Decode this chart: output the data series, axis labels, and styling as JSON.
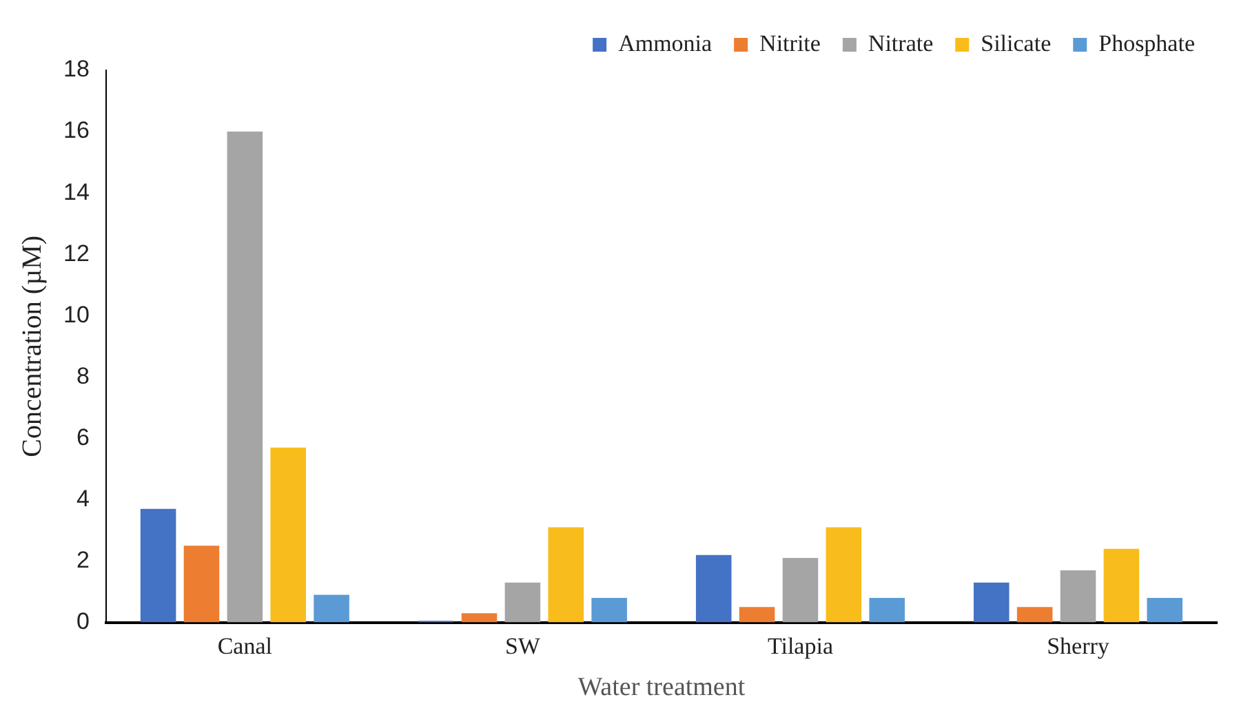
{
  "chart_data": {
    "type": "bar",
    "xlabel": "Water treatment",
    "ylabel": "Concentration (µM)",
    "categories": [
      "Canal",
      "SW",
      "Tilapia",
      "Sherry"
    ],
    "series": [
      {
        "name": "Ammonia",
        "color": "#4472c4",
        "values": [
          3.7,
          0.05,
          2.2,
          1.3
        ]
      },
      {
        "name": "Nitrite",
        "color": "#ed7d31",
        "values": [
          2.5,
          0.3,
          0.5,
          0.5
        ]
      },
      {
        "name": "Nitrate",
        "color": "#a5a5a5",
        "values": [
          16,
          1.3,
          2.1,
          1.7
        ]
      },
      {
        "name": "Silicate",
        "color": "#f8bd1c",
        "values": [
          5.7,
          3.1,
          3.1,
          2.4
        ]
      },
      {
        "name": "Phosphate",
        "color": "#5b9bd5",
        "values": [
          0.9,
          0.8,
          0.8,
          0.8
        ]
      }
    ],
    "ylim": [
      0,
      18
    ],
    "yticks": [
      0,
      2,
      4,
      6,
      8,
      10,
      12,
      14,
      16,
      18
    ],
    "grid": false,
    "legend": "top right"
  }
}
